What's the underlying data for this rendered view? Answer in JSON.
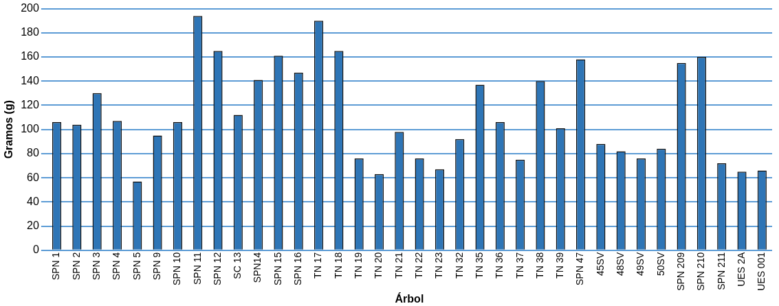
{
  "chart_data": {
    "type": "bar",
    "xlabel": "Árbol",
    "ylabel": "Gramos (g)",
    "categories": [
      "SPN 1",
      "SPN 2",
      "SPN 3",
      "SPN 4",
      "SPN 5",
      "SPN 9",
      "SPN 10",
      "SPN 11",
      "SPN 12",
      "SC 13",
      "SPN14",
      "SPN 15",
      "SPN 16",
      "TN 17",
      "TN 18",
      "TN 19",
      "TN 20",
      "TN 21",
      "TN 22",
      "TN 23",
      "TN 32",
      "TN 35",
      "TN 36",
      "TN 37",
      "TN 38",
      "TN 39",
      "SPN 47",
      "45SV",
      "48SV",
      "49SV",
      "50SV",
      "SPN 209",
      "SPN 210",
      "SPN 211",
      "UES 2A",
      "UES 001"
    ],
    "values": [
      106,
      104,
      130,
      107,
      57,
      95,
      106,
      194,
      165,
      112,
      141,
      161,
      147,
      190,
      165,
      76,
      63,
      98,
      76,
      67,
      92,
      137,
      106,
      75,
      140,
      101,
      158,
      88,
      82,
      76,
      84,
      155,
      160,
      72,
      65,
      66
    ],
    "color": "#2e75b6",
    "ylim": [
      0,
      200
    ],
    "yticks": [
      0,
      20,
      40,
      60,
      80,
      100,
      120,
      140,
      160,
      180,
      200
    ],
    "grid": "y"
  }
}
